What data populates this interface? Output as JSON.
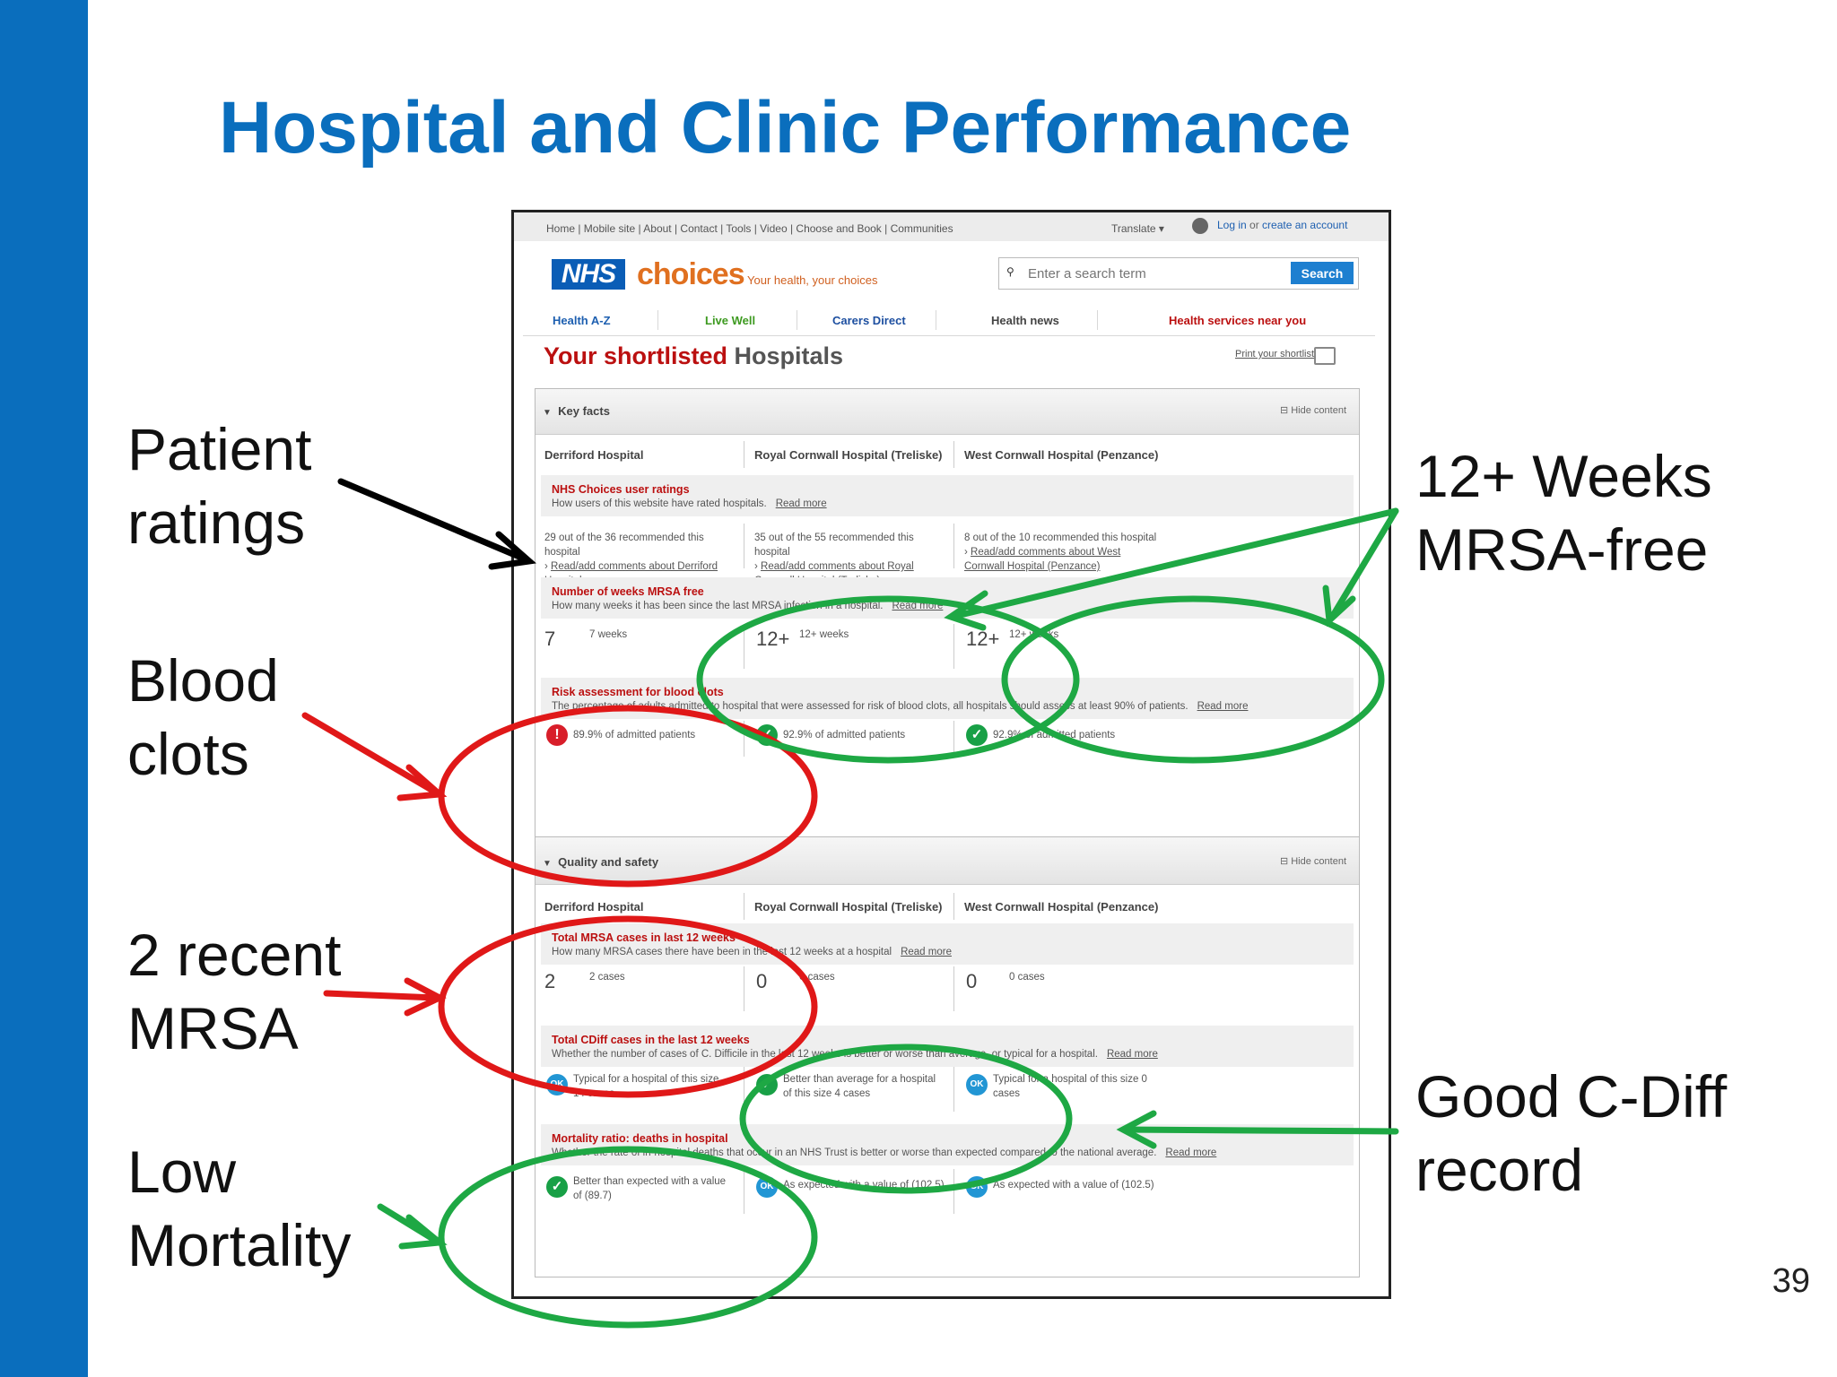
{
  "slide": {
    "title": "Hospital and Clinic Performance",
    "page_number": "39",
    "labels": {
      "patient_ratings": [
        "Patient",
        "ratings"
      ],
      "blood_clots": [
        "Blood",
        "clots"
      ],
      "recent_mrsa": [
        "2 recent",
        "MRSA"
      ],
      "low_mortality": [
        "Low",
        "Mortality"
      ],
      "mrsa_free": [
        "12+ Weeks",
        "MRSA-free"
      ],
      "cdiff": [
        "Good C-Diff",
        "record"
      ]
    },
    "colors": {
      "brand_blue": "#0a6ebd",
      "annotation_red": "#e01818",
      "annotation_green": "#1ea844",
      "arrow_black": "#000000"
    }
  },
  "website": {
    "top_nav": "Home | Mobile site | About | Contact | Tools | Video | Choose and Book | Communities",
    "translate": "Translate ▾",
    "login": {
      "icon": "user-icon",
      "text_login": "Log in",
      "text_or": " or ",
      "text_create": "create an account"
    },
    "logo": {
      "nhs": "NHS",
      "choices": "choices",
      "tagline": "Your health, your choices"
    },
    "search": {
      "icon": "search-icon",
      "placeholder": "Enter a search term",
      "button": "Search"
    },
    "main_nav": [
      {
        "label": "Health A-Z",
        "color": "#1d5fb0"
      },
      {
        "label": "Live Well",
        "color": "#3d9a20"
      },
      {
        "label": "Carers Direct",
        "color": "#1d4fa0"
      },
      {
        "label": "Health news",
        "color": "#444444"
      },
      {
        "label": "Health services near you",
        "color": "#bb1010"
      }
    ],
    "page_title": {
      "part1": "Your shortlisted ",
      "part2": "Hospitals"
    },
    "print_shortlist": "Print your shortlist",
    "hide_content": "Hide content",
    "hospitals": [
      "Derriford Hospital",
      "Royal Cornwall Hospital (Treliske)",
      "West Cornwall Hospital (Penzance)"
    ],
    "key_facts": {
      "title": "Key facts",
      "user_ratings": {
        "name": "NHS Choices user ratings",
        "desc": "How users of this website have rated hospitals.",
        "read_more": "Read more",
        "values": [
          {
            "text": "29 out of the 36 recommended this hospital",
            "link": "Read/add comments about Derriford Hospital"
          },
          {
            "text": "35 out of the 55 recommended this hospital",
            "link": "Read/add comments about Royal Cornwall Hospital (Treliske)"
          },
          {
            "text": "8 out of the 10 recommended this hospital",
            "link": "Read/add comments about West Cornwall Hospital (Penzance)"
          }
        ]
      },
      "mrsa_weeks": {
        "name": "Number of weeks MRSA free",
        "desc": "How many weeks it has been since the last MRSA infection in a hospital.",
        "read_more": "Read more",
        "values": [
          {
            "big": "7",
            "small": "7 weeks"
          },
          {
            "big": "12+",
            "small": "12+ weeks"
          },
          {
            "big": "12+",
            "small": "12+ weeks"
          }
        ]
      },
      "blood_clots": {
        "name": "Risk assessment for blood clots",
        "desc": "The percentage of adults admitted to hospital that were assessed for risk of blood clots, all hospitals should assess at least 90% of patients.",
        "read_more": "Read more",
        "values": [
          {
            "icon": "alert-icon",
            "text": "89.9% of admitted patients"
          },
          {
            "icon": "tick-icon",
            "text": "92.9% of admitted patients"
          },
          {
            "icon": "tick-icon",
            "text": "92.9% of admitted patients"
          }
        ]
      }
    },
    "quality": {
      "title": "Quality and safety",
      "mrsa_cases": {
        "name": "Total MRSA cases in last 12 weeks",
        "desc": "How many MRSA cases there have been in the last 12 weeks at a hospital",
        "read_more": "Read more",
        "values": [
          {
            "big": "2",
            "small": "2 cases"
          },
          {
            "big": "0",
            "small": "0 cases"
          },
          {
            "big": "0",
            "small": "0 cases"
          }
        ]
      },
      "cdiff": {
        "name": "Total CDiff cases in the last 12 weeks",
        "desc": "Whether the number of cases of C. Difficile in the last 12 weeks is better or worse than average, or typical for a hospital.",
        "read_more": "Read more",
        "values": [
          {
            "icon": "ok-icon",
            "badge": "OK",
            "line1": "Typical for a hospital of this size",
            "line2": "14 cases"
          },
          {
            "icon": "tick-icon",
            "badge": "✓",
            "line1": "Better than average for a hospital",
            "line2": "of this size 4 cases"
          },
          {
            "icon": "ok-icon",
            "badge": "OK",
            "line1": "Typical for a hospital of this size 0",
            "line2": "cases"
          }
        ]
      },
      "mortality": {
        "name": "Mortality ratio: deaths in hospital",
        "desc": "Whether the rate of in-hospital deaths that occur in an NHS Trust is better or worse than expected compared to the national average.",
        "read_more": "Read more",
        "values": [
          {
            "icon": "tick-icon",
            "badge": "✓",
            "line1": "Better than expected with a value",
            "line2": "of (89.7)"
          },
          {
            "icon": "ok-icon",
            "badge": "OK",
            "line1": "As expected with a value of (102.5)",
            "line2": ""
          },
          {
            "icon": "ok-icon",
            "badge": "OK",
            "line1": "As expected with a value of (102.5)",
            "line2": ""
          }
        ]
      }
    }
  }
}
